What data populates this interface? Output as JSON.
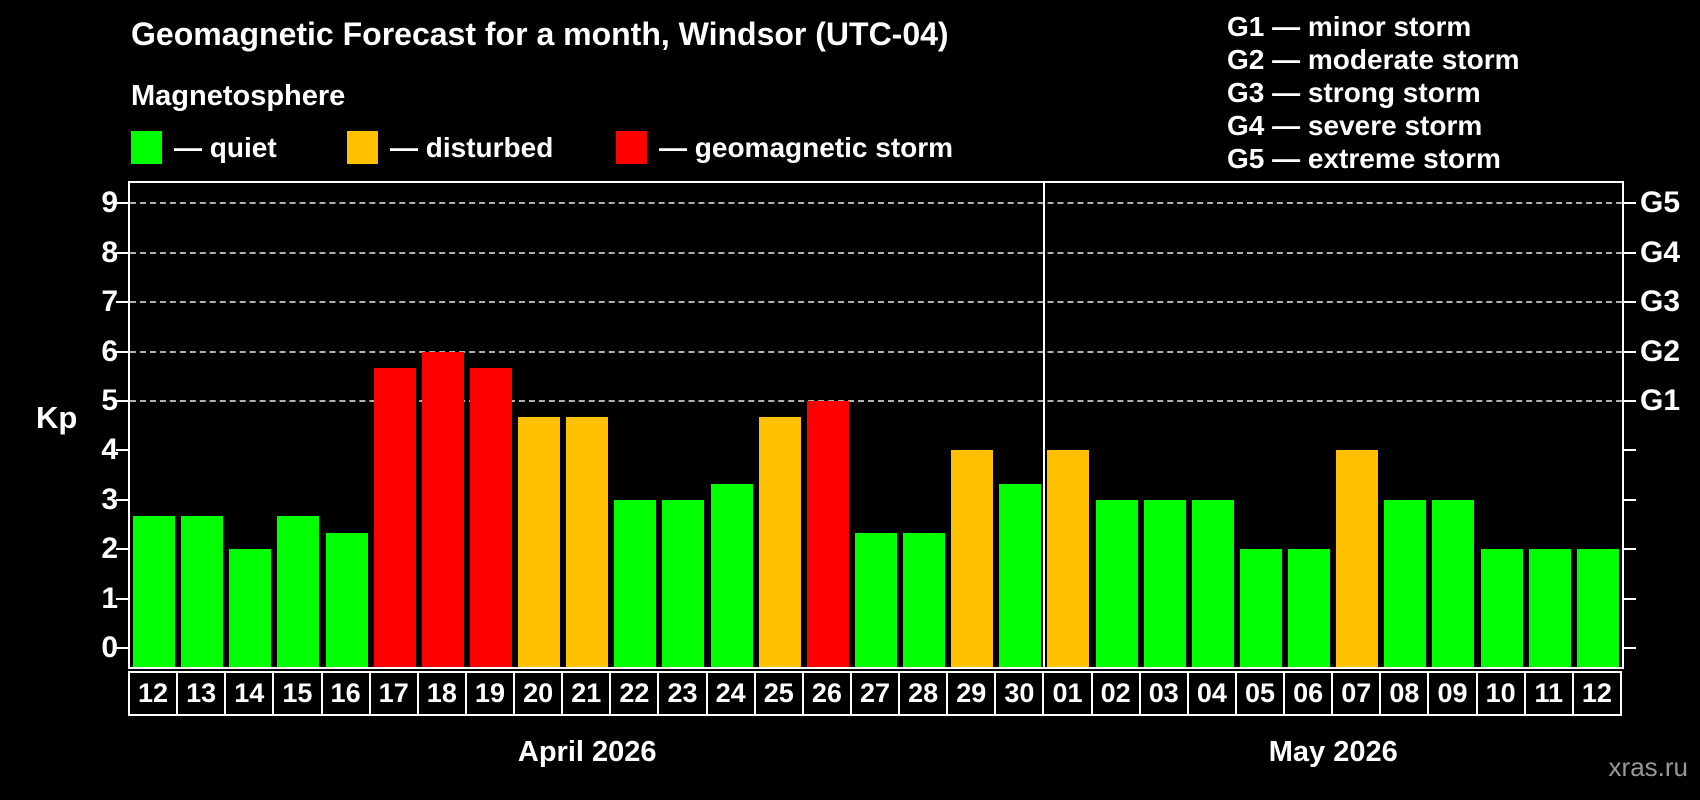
{
  "watermark": "xras.ru",
  "chart_data": {
    "type": "bar",
    "title": "Geomagnetic Forecast for a month, Windsor (UTC-04)",
    "subtitle": "Magnetosphere",
    "ylabel": "Kp",
    "ylim": [
      0,
      9.4
    ],
    "y_ticks": [
      0,
      1,
      2,
      3,
      4,
      5,
      6,
      7,
      8,
      9
    ],
    "grid": "dashed horizontal lines at Kp 5-9 only",
    "legend_position": "top-left",
    "legend": [
      {
        "label": "— quiet",
        "status": "quiet"
      },
      {
        "label": "— disturbed",
        "status": "disturbed"
      },
      {
        "label": "— geomagnetic storm",
        "status": "storm"
      }
    ],
    "colors": {
      "quiet": "#00ff00",
      "disturbed": "#ffc000",
      "storm": "#ff0000"
    },
    "g_levels": [
      {
        "label": "G1",
        "kp": 5
      },
      {
        "label": "G2",
        "kp": 6
      },
      {
        "label": "G3",
        "kp": 7
      },
      {
        "label": "G4",
        "kp": 8
      },
      {
        "label": "G5",
        "kp": 9
      }
    ],
    "storm_scale_legend": [
      "G1 — minor storm",
      "G2 — moderate storm",
      "G3 — strong storm",
      "G4 — severe storm",
      "G5 — extreme storm"
    ],
    "months": [
      {
        "label": "April 2026",
        "days": [
          {
            "date": "12",
            "kp": 2.67,
            "status": "quiet"
          },
          {
            "date": "13",
            "kp": 2.67,
            "status": "quiet"
          },
          {
            "date": "14",
            "kp": 2.0,
            "status": "quiet"
          },
          {
            "date": "15",
            "kp": 2.67,
            "status": "quiet"
          },
          {
            "date": "16",
            "kp": 2.33,
            "status": "quiet"
          },
          {
            "date": "17",
            "kp": 5.67,
            "status": "storm"
          },
          {
            "date": "18",
            "kp": 6.0,
            "status": "storm"
          },
          {
            "date": "19",
            "kp": 5.67,
            "status": "storm"
          },
          {
            "date": "20",
            "kp": 4.67,
            "status": "disturbed"
          },
          {
            "date": "21",
            "kp": 4.67,
            "status": "disturbed"
          },
          {
            "date": "22",
            "kp": 3.0,
            "status": "quiet"
          },
          {
            "date": "23",
            "kp": 3.0,
            "status": "quiet"
          },
          {
            "date": "24",
            "kp": 3.33,
            "status": "quiet"
          },
          {
            "date": "25",
            "kp": 4.67,
            "status": "disturbed"
          },
          {
            "date": "26",
            "kp": 5.0,
            "status": "storm"
          },
          {
            "date": "27",
            "kp": 2.33,
            "status": "quiet"
          },
          {
            "date": "28",
            "kp": 2.33,
            "status": "quiet"
          },
          {
            "date": "29",
            "kp": 4.0,
            "status": "disturbed"
          },
          {
            "date": "30",
            "kp": 3.33,
            "status": "quiet"
          }
        ]
      },
      {
        "label": "May 2026",
        "days": [
          {
            "date": "01",
            "kp": 4.0,
            "status": "disturbed"
          },
          {
            "date": "02",
            "kp": 3.0,
            "status": "quiet"
          },
          {
            "date": "03",
            "kp": 3.0,
            "status": "quiet"
          },
          {
            "date": "04",
            "kp": 3.0,
            "status": "quiet"
          },
          {
            "date": "05",
            "kp": 2.0,
            "status": "quiet"
          },
          {
            "date": "06",
            "kp": 2.0,
            "status": "quiet"
          },
          {
            "date": "07",
            "kp": 4.0,
            "status": "disturbed"
          },
          {
            "date": "08",
            "kp": 3.0,
            "status": "quiet"
          },
          {
            "date": "09",
            "kp": 3.0,
            "status": "quiet"
          },
          {
            "date": "10",
            "kp": 2.0,
            "status": "quiet"
          },
          {
            "date": "11",
            "kp": 2.0,
            "status": "quiet"
          },
          {
            "date": "12",
            "kp": 2.0,
            "status": "quiet"
          }
        ]
      }
    ]
  }
}
